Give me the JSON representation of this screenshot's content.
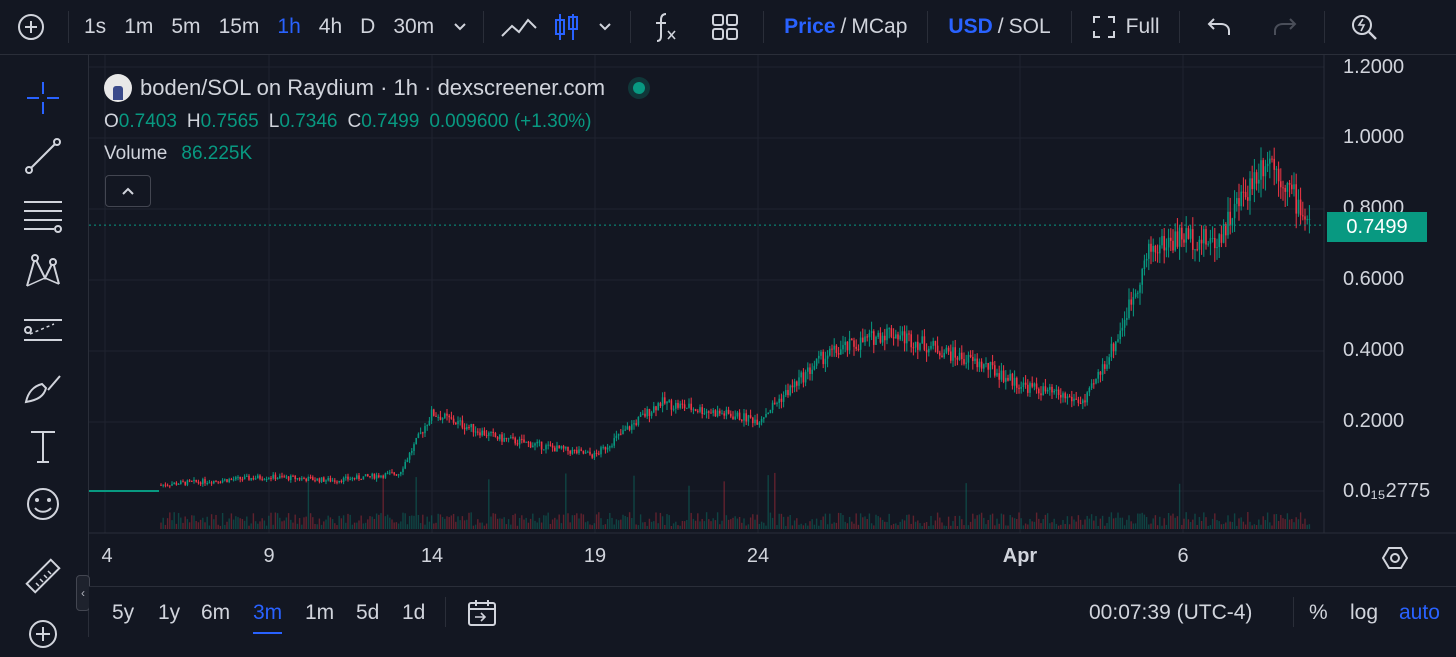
{
  "toolbar": {
    "intervals": [
      "1s",
      "1m",
      "5m",
      "15m",
      "1h",
      "4h",
      "D",
      "30m"
    ],
    "active_interval": "1h",
    "price_label": "Price",
    "mcap_label": "MCap",
    "usd_label": "USD",
    "sol_label": "SOL",
    "full_label": "Full",
    "separator": "/"
  },
  "legend": {
    "title": "boden/SOL on Raydium · 1h · dexscreener.com",
    "open_key": "O",
    "open": "0.7403",
    "high_key": "H",
    "high": "0.7565",
    "low_key": "L",
    "low": "0.7346",
    "close_key": "C",
    "close": "0.7499",
    "change": "0.009600 (+1.30%)",
    "volume_label": "Volume",
    "volume": "86.225K"
  },
  "price_axis": {
    "ticks": [
      "1.2000",
      "1.0000",
      "0.8000",
      "0.6000",
      "0.4000",
      "0.2000"
    ],
    "bottom_label": "0.0₁₅2775",
    "last_price": "0.7499"
  },
  "time_axis": {
    "ticks": [
      "4",
      "9",
      "14",
      "19",
      "24",
      "Apr",
      "6"
    ]
  },
  "bottom": {
    "ranges": [
      "5y",
      "1y",
      "6m",
      "3m",
      "1m",
      "5d",
      "1d"
    ],
    "active_range": "3m",
    "clock": "00:07:39 (UTC-4)",
    "percent_label": "%",
    "log_label": "log",
    "auto_label": "auto"
  },
  "colors": {
    "up": "#089981",
    "down": "#f23645",
    "accent": "#2962ff",
    "background": "#131722",
    "grid": "#1f2330"
  },
  "icons": {
    "add": "plus-circle-icon",
    "crosshair": "crosshair-icon",
    "trendline": "trendline-icon",
    "fib": "fib-retracement-icon",
    "pattern": "xabcd-pattern-icon",
    "forecast": "forecast-icon",
    "brush": "brush-icon",
    "text": "text-icon",
    "emoji": "emoji-icon",
    "ruler": "ruler-icon",
    "zoom": "zoom-in-icon"
  },
  "chart_data": {
    "type": "candlestick",
    "symbol": "boden/SOL",
    "interval": "1h",
    "ylim": [
      0.0,
      1.2
    ],
    "x_ticks": [
      "4",
      "9",
      "14",
      "19",
      "24",
      "Apr",
      "6"
    ],
    "approx_close_by_date": {
      "x": [
        "4",
        "6",
        "9",
        "11",
        "13",
        "14",
        "16",
        "19",
        "21",
        "24",
        "26",
        "28",
        "31",
        "Apr 1",
        "Apr 3",
        "Apr 4",
        "Apr 5",
        "Apr 6",
        "Apr 7",
        "Apr 8",
        "Apr 9"
      ],
      "y": [
        0.0,
        0.02,
        0.04,
        0.03,
        0.05,
        0.22,
        0.15,
        0.1,
        0.25,
        0.2,
        0.38,
        0.45,
        0.35,
        0.3,
        0.25,
        0.43,
        0.68,
        0.72,
        0.7,
        0.95,
        0.75
      ]
    },
    "last_close": 0.7499
  }
}
